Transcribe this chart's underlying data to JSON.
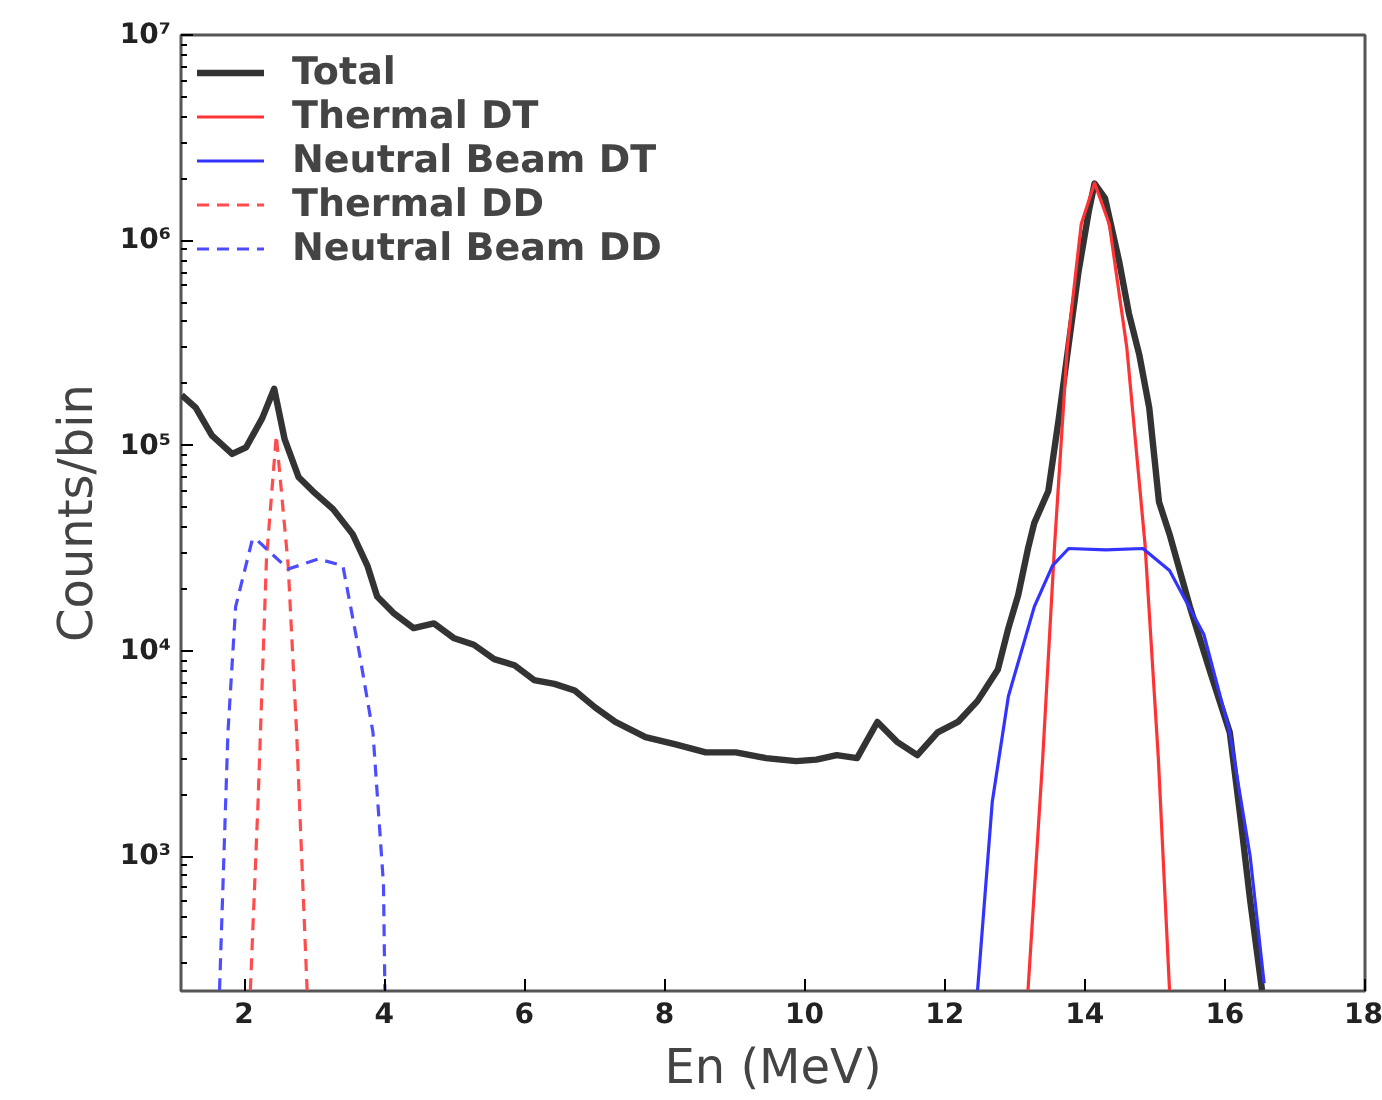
{
  "chart_data": {
    "type": "line",
    "xlabel": "En (MeV)",
    "ylabel": "Counts/bin",
    "log": "y",
    "xlim": [
      1.1,
      18
    ],
    "xticks": [
      2,
      4,
      6,
      8,
      10,
      12,
      14,
      16,
      18
    ],
    "ylim": [
      220,
      10000000
    ],
    "yticks": [
      {
        "value": 1000,
        "label": "10³"
      },
      {
        "value": 10000,
        "label": "10⁴"
      },
      {
        "value": 100000,
        "label": "10⁵"
      },
      {
        "value": 1000000,
        "label": "10⁶"
      },
      {
        "value": 10000000,
        "label": "10⁷"
      }
    ],
    "grid": false,
    "legend": "top left",
    "series": [
      {
        "name": "Total",
        "color": "#333333",
        "line_style": "solid",
        "x": [
          1.11,
          1.31,
          1.54,
          1.83,
          2.03,
          2.26,
          2.43,
          2.58,
          2.78,
          2.98,
          3.27,
          3.55,
          3.76,
          3.9,
          4.13,
          4.42,
          4.71,
          5.0,
          5.28,
          5.57,
          5.86,
          6.14,
          6.43,
          6.72,
          7.01,
          7.3,
          7.73,
          8.16,
          8.59,
          9.02,
          9.45,
          9.88,
          10.17,
          10.46,
          10.75,
          11.04,
          11.32,
          11.61,
          11.9,
          12.19,
          12.47,
          12.76,
          12.91,
          13.05,
          13.19,
          13.28,
          13.48,
          13.63,
          13.77,
          13.91,
          14.06,
          14.14,
          14.29,
          14.49,
          14.63,
          14.78,
          14.92,
          15.06,
          15.21,
          15.5,
          15.78,
          16.07,
          16.22,
          16.36,
          16.53
        ],
        "values": [
          176000,
          153000,
          112000,
          91000,
          98000,
          136000,
          189000,
          107000,
          70000,
          60000,
          49000,
          37000,
          26000,
          18400,
          15300,
          12900,
          13600,
          11500,
          10700,
          9100,
          8500,
          7200,
          6900,
          6400,
          5300,
          4500,
          3800,
          3500,
          3200,
          3200,
          3000,
          2900,
          2950,
          3100,
          3000,
          4500,
          3600,
          3100,
          4000,
          4500,
          5700,
          8100,
          12900,
          18700,
          31500,
          42000,
          60000,
          136000,
          310000,
          700000,
          1400000,
          1890000,
          1600000,
          791000,
          440000,
          275000,
          153000,
          53000,
          37000,
          16400,
          8100,
          4000,
          1560,
          611,
          222
        ]
      },
      {
        "name": "Thermal DT",
        "color": "#ff3333",
        "line_style": "solid",
        "x": [
          13.19,
          13.4,
          13.57,
          13.75,
          13.95,
          14.14,
          14.35,
          14.6,
          14.86,
          15.05,
          15.21
        ],
        "values": [
          222,
          3000,
          33000,
          300000,
          1200000,
          1900000,
          1200000,
          300000,
          33000,
          3000,
          222
        ]
      },
      {
        "name": "Neutral Beam DT",
        "color": "#3333ff",
        "line_style": "solid",
        "x": [
          12.47,
          12.68,
          12.91,
          13.28,
          13.54,
          13.77,
          14.3,
          14.83,
          15.21,
          15.7,
          16.07,
          16.36,
          16.56
        ],
        "values": [
          222,
          1840,
          6000,
          16400,
          26000,
          31500,
          31000,
          31500,
          24600,
          12000,
          4000,
          1000,
          240
        ]
      },
      {
        "name": "Thermal DD",
        "color": "#ff4d4d",
        "line_style": "dashed",
        "x": [
          2.09,
          2.2,
          2.32,
          2.46,
          2.63,
          2.75,
          2.9
        ],
        "values": [
          222,
          1840,
          28000,
          112000,
          26000,
          4000,
          222
        ]
      },
      {
        "name": "Neutral Beam DD",
        "color": "#4d4dff",
        "line_style": "dashed",
        "x": [
          1.65,
          1.77,
          1.88,
          2.12,
          2.17,
          2.63,
          3.06,
          3.41,
          3.64,
          3.84,
          3.99,
          4.01
        ],
        "values": [
          222,
          4000,
          16400,
          35000,
          35000,
          25000,
          28000,
          26000,
          10000,
          4000,
          730,
          222
        ]
      }
    ]
  }
}
